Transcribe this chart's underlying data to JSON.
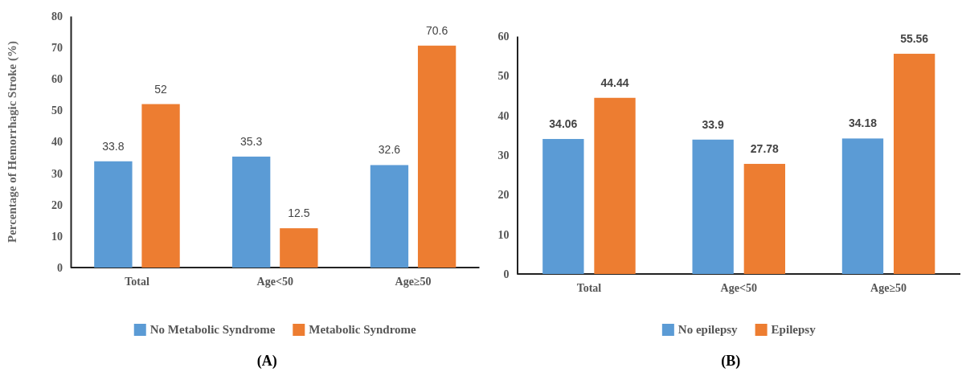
{
  "chart_data": [
    {
      "type": "bar",
      "ylabel": "Percentage of Hemorrhagic  Stroke (%)",
      "categories": [
        "Total",
        "Age<50",
        "Age≥50"
      ],
      "series": [
        {
          "name": "No Metabolic Syndrome",
          "color": "#5b9bd5",
          "values": [
            33.8,
            35.3,
            32.6
          ]
        },
        {
          "name": "Metabolic Syndrome",
          "color": "#ed7d31",
          "values": [
            52,
            12.5,
            70.6
          ]
        }
      ],
      "ylim": [
        0,
        80
      ],
      "yticks": [
        0,
        10,
        20,
        30,
        40,
        50,
        60,
        70,
        80
      ],
      "data_labels": true,
      "legend": "bottom",
      "annotations": [
        "(A)"
      ]
    },
    {
      "type": "bar",
      "categories": [
        "Total",
        "Age<50",
        "Age≥50"
      ],
      "series": [
        {
          "name": "No epilepsy",
          "color": "#5b9bd5",
          "values": [
            34.06,
            33.9,
            34.18
          ]
        },
        {
          "name": "Epilepsy",
          "color": "#ed7d31",
          "values": [
            44.44,
            27.78,
            55.56
          ]
        }
      ],
      "ylim": [
        0,
        60
      ],
      "yticks": [
        0,
        10,
        20,
        30,
        40,
        50,
        60
      ],
      "data_labels": true,
      "legend": "bottom",
      "annotations": [
        "(B)"
      ]
    }
  ]
}
